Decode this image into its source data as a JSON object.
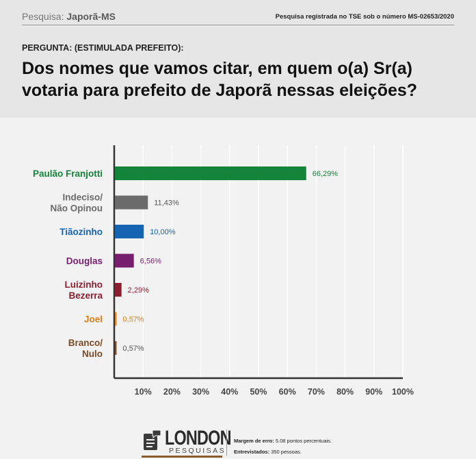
{
  "header": {
    "poll_prefix": "Pesquisa:",
    "poll_name": "Japorã-MS",
    "registration": "Pesquisa registrada no TSE sob o número MS-02653/2020",
    "question_label": "PERGUNTA: (ESTIMULADA PREFEITO):",
    "question": "Dos nomes que vamos citar, em quem o(a) Sr(a) votaria para prefeito de Japorã nessas eleições?"
  },
  "chart_data": {
    "type": "bar",
    "orientation": "horizontal",
    "categories": [
      [
        "Paulão Franjotti"
      ],
      [
        "Indeciso/",
        "Não Opinou"
      ],
      [
        "Tiãozinho"
      ],
      [
        "Douglas"
      ],
      [
        "Luizinho",
        "Bezerra"
      ],
      [
        "Joel"
      ],
      [
        "Branco/",
        "Nulo"
      ]
    ],
    "values": [
      66.29,
      11.43,
      10.0,
      6.56,
      2.29,
      0.57,
      0.57
    ],
    "value_labels": [
      "66,29%",
      "11,43%",
      "10,00%",
      "6,56%",
      "2,29%",
      "0,57%",
      "0,57%"
    ],
    "colors": [
      "#14843a",
      "#6b6b6b",
      "#1564b4",
      "#781e6e",
      "#8c1e32",
      "#e07f19",
      "#7a4a26"
    ],
    "label_colors": [
      "#14843a",
      "#6b6b6b",
      "#1564b4",
      "#781e6e",
      "#8c1e32",
      "#e07f19",
      "#7a4a26"
    ],
    "value_label_colors": [
      "#14843a",
      "#555555",
      "#1564b4",
      "#781e6e",
      "#8c1e32",
      "#e07f19",
      "#555555"
    ],
    "x_ticks": [
      "10%",
      "20%",
      "30%",
      "40%",
      "50%",
      "60%",
      "70%",
      "80%",
      "90%",
      "100%"
    ],
    "xlim": [
      0,
      100
    ],
    "grid": true
  },
  "footer": {
    "logo_word": "LONDON",
    "logo_sub": "PESQUISAS",
    "margin_label": "Margem de erro:",
    "margin_value": "5.08 pontos percentuais.",
    "interviewed_label": "Entrevistados:",
    "interviewed_value": "350 pessoas."
  }
}
